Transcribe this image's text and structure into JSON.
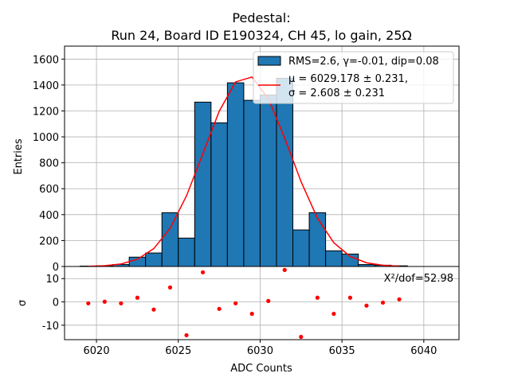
{
  "chart_data": {
    "type": "bar",
    "title_line1": "Pedestal:",
    "title_line2": "Run 24, Board ID E190324, CH 45, lo gain, 25Ω",
    "xlabel": "ADC Counts",
    "ylabel": "Entries",
    "residual_ylabel": "σ",
    "xlim": [
      6018.05,
      6042.15
    ],
    "ylim": [
      0,
      1700
    ],
    "residual_ylim": [
      -16.2,
      15.2
    ],
    "grid": true,
    "x_ticks": [
      6020,
      6025,
      6030,
      6035,
      6040
    ],
    "y_ticks": [
      0,
      200,
      400,
      600,
      800,
      1000,
      1200,
      1400,
      1600
    ],
    "residual_y_ticks": [
      -10,
      0,
      10
    ],
    "bin_edges_start": 6019,
    "bin_width": 1,
    "values": [
      3,
      5,
      15,
      72,
      104,
      415,
      219,
      1268,
      1108,
      1417,
      1282,
      1323,
      1452,
      282,
      415,
      121,
      96,
      15,
      10,
      5
    ],
    "bar_color": "#1f77b4",
    "fit": {
      "mu": 6029.178,
      "sigma": 2.608,
      "amplitude": 1473,
      "color": "#ff0000"
    },
    "residuals": [
      -0.6,
      0.1,
      -0.6,
      1.8,
      -3.3,
      6.2,
      -14.3,
      12.7,
      -3.0,
      -0.6,
      -5.1,
      0.4,
      13.7,
      -15.0,
      1.8,
      -5.1,
      1.8,
      -1.6,
      -0.3,
      1.1
    ],
    "legend": {
      "placement": "top-right",
      "hist_label": "RMS=2.6, γ=-0.01, dip=0.08",
      "fit_label_line1": "μ = 6029.178 ± 0.231,",
      "fit_label_line2": "σ = 2.608 ± 0.231"
    },
    "annotation": "X²/dof=52.98"
  }
}
